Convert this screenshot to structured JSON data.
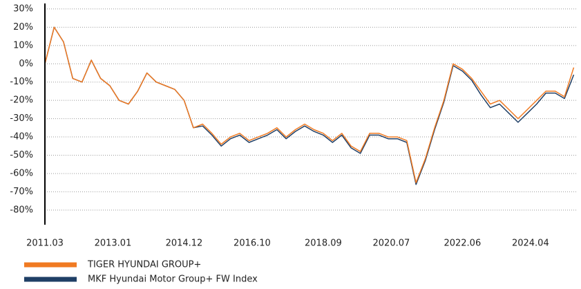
{
  "chart_data": {
    "type": "line",
    "x": [
      "2011.03",
      "2011.06",
      "2011.09",
      "2011.12",
      "2012.03",
      "2012.06",
      "2012.09",
      "2012.12",
      "2013.03",
      "2013.06",
      "2013.09",
      "2013.12",
      "2014.03",
      "2014.06",
      "2014.09",
      "2014.12",
      "2015.03",
      "2015.06",
      "2015.09",
      "2015.12",
      "2016.03",
      "2016.06",
      "2016.09",
      "2016.12",
      "2017.03",
      "2017.06",
      "2017.09",
      "2017.12",
      "2018.03",
      "2018.06",
      "2018.09",
      "2018.12",
      "2019.03",
      "2019.06",
      "2019.09",
      "2019.12",
      "2020.03",
      "2020.06",
      "2020.09",
      "2020.12",
      "2021.03",
      "2021.06",
      "2021.09",
      "2021.12",
      "2022.03",
      "2022.06",
      "2022.09",
      "2022.12",
      "2023.03",
      "2023.06",
      "2023.09",
      "2023.12",
      "2024.03",
      "2024.06",
      "2024.09",
      "2024.12",
      "2025.03",
      "2025.06"
    ],
    "series": [
      {
        "name": "TIGER HYUNDAI GROUP+",
        "color": "#f07a22",
        "values": [
          0,
          20,
          12,
          -8,
          -10,
          2,
          -8,
          -12,
          -20,
          -22,
          -15,
          -5,
          -10,
          -12,
          -14,
          -20,
          -35,
          -33,
          -38,
          -44,
          -40,
          -38,
          -42,
          -40,
          -38,
          -35,
          -40,
          -36,
          -33,
          -36,
          -38,
          -42,
          -38,
          -45,
          -48,
          -38,
          -38,
          -40,
          -40,
          -42,
          -65,
          -52,
          -35,
          -20,
          0,
          -3,
          -8,
          -15,
          -22,
          -20,
          -25,
          -30,
          -25,
          -20,
          -15,
          -15,
          -18,
          -2
        ]
      },
      {
        "name": "MKF Hyundai Motor Group+ FW Index",
        "color": "#1f3f66",
        "values": [
          0,
          20,
          12,
          -8,
          -10,
          2,
          -8,
          -12,
          -20,
          -22,
          -15,
          -5,
          -10,
          -12,
          -14,
          -20,
          -35,
          -34,
          -39,
          -45,
          -41,
          -39,
          -43,
          -41,
          -39,
          -36,
          -41,
          -37,
          -34,
          -37,
          -39,
          -43,
          -39,
          -46,
          -49,
          -39,
          -39,
          -41,
          -41,
          -43,
          -66,
          -53,
          -36,
          -21,
          -1,
          -4,
          -9,
          -17,
          -24,
          -22,
          -27,
          -32,
          -27,
          -22,
          -16,
          -16,
          -19,
          -6
        ]
      }
    ],
    "ylim": [
      -88,
      33
    ],
    "yticks": [
      {
        "value": 30,
        "label": "30%"
      },
      {
        "value": 20,
        "label": "20%"
      },
      {
        "value": 10,
        "label": "10%"
      },
      {
        "value": 0,
        "label": "0%"
      },
      {
        "value": -10,
        "label": "-10%"
      },
      {
        "value": -20,
        "label": "-20%"
      },
      {
        "value": -30,
        "label": "-30%"
      },
      {
        "value": -40,
        "label": "-40%"
      },
      {
        "value": -50,
        "label": "-50%"
      },
      {
        "value": -60,
        "label": "-60%"
      },
      {
        "value": -70,
        "label": "-70%"
      },
      {
        "value": -80,
        "label": "-80%"
      }
    ],
    "xlim": [
      "2011.03",
      "2025.07"
    ],
    "xticks": [
      "2011.03",
      "2013.01",
      "2014.12",
      "2016.10",
      "2018.09",
      "2020.07",
      "2022.06",
      "2024.04"
    ],
    "grid": true
  }
}
